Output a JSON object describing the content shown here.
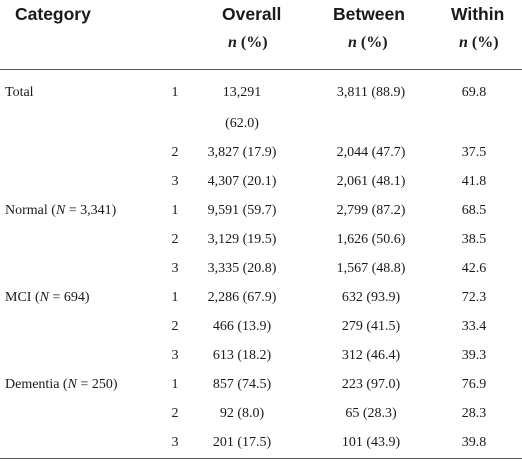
{
  "headers": {
    "category": "Category",
    "overall": "Overall",
    "between": "Between",
    "within": "Within",
    "sub_n": "n",
    "sub_pct": " (%)"
  },
  "sections": [
    {
      "label_prefix": "Total",
      "n_label": "",
      "n_value": "",
      "rows": [
        {
          "group": "1",
          "overall_line1": "13,291",
          "overall_line2": "(62.0)",
          "between": "3,811 (88.9)",
          "within": "69.8"
        },
        {
          "group": "2",
          "overall": "3,827 (17.9)",
          "between": "2,044 (47.7)",
          "within": "37.5"
        },
        {
          "group": "3",
          "overall": "4,307 (20.1)",
          "between": "2,061 (48.1)",
          "within": "41.8"
        }
      ]
    },
    {
      "label_prefix": "Normal (",
      "n_label": "N",
      "n_value": " = 3,341)",
      "rows": [
        {
          "group": "1",
          "overall": "9,591 (59.7)",
          "between": "2,799 (87.2)",
          "within": "68.5"
        },
        {
          "group": "2",
          "overall": "3,129 (19.5)",
          "between": "1,626 (50.6)",
          "within": "38.5"
        },
        {
          "group": "3",
          "overall": "3,335 (20.8)",
          "between": "1,567 (48.8)",
          "within": "42.6"
        }
      ]
    },
    {
      "label_prefix": "MCI (",
      "n_label": "N",
      "n_value": " = 694)",
      "rows": [
        {
          "group": "1",
          "overall": "2,286 (67.9)",
          "between": "632 (93.9)",
          "within": "72.3"
        },
        {
          "group": "2",
          "overall": "466 (13.9)",
          "between": "279 (41.5)",
          "within": "33.4"
        },
        {
          "group": "3",
          "overall": "613 (18.2)",
          "between": "312 (46.4)",
          "within": "39.3"
        }
      ]
    },
    {
      "label_prefix": "Dementia (",
      "n_label": "N",
      "n_value": " = 250)",
      "rows": [
        {
          "group": "1",
          "overall": "857 (74.5)",
          "between": "223 (97.0)",
          "within": "76.9"
        },
        {
          "group": "2",
          "overall": "92 (8.0)",
          "between": "65 (28.3)",
          "within": "28.3"
        },
        {
          "group": "3",
          "overall": "201 (17.5)",
          "between": "101 (43.9)",
          "within": "39.8"
        }
      ]
    }
  ]
}
